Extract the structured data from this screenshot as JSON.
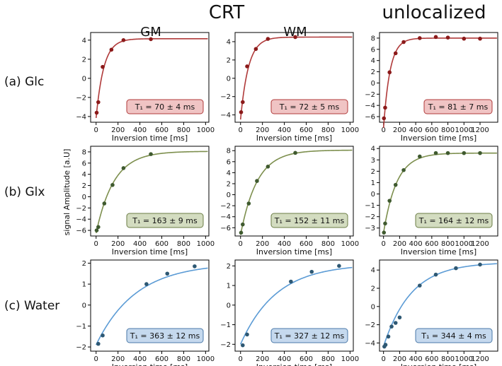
{
  "headers": {
    "crt": "CRT",
    "gm": "GM",
    "wm": "WM",
    "unlocalized": "unlocalized"
  },
  "row_labels": [
    "(a) Glc",
    "(b) Glx",
    "(c) Water"
  ],
  "ylabel": "signal Amplitude [a.U]",
  "xlabel": "Inversion time [ms]",
  "colors": {
    "glc_line": "#b03a3a",
    "glc_point": "#8b1a1a",
    "glc_box": "#f0c4c4",
    "glc_box_edge": "#b03a3a",
    "glx_line": "#7d8f4e",
    "glx_point": "#3f5a2f",
    "glx_box": "#d3dcc0",
    "glx_box_edge": "#6b7d45",
    "water_line": "#5b9bd5",
    "water_point": "#2e5873",
    "water_box": "#c5d9ee",
    "water_box_edge": "#4a78a8"
  },
  "chart_data": [
    {
      "type": "scatter",
      "row": "(a) Glc",
      "column": "GM",
      "xlim": [
        -50,
        1030
      ],
      "ylim": [
        -4.6,
        4.8
      ],
      "xticks": [
        0,
        200,
        400,
        600,
        800,
        1000
      ],
      "yticks": [
        -4,
        -2,
        0,
        2,
        4
      ],
      "x": [
        5,
        20,
        60,
        140,
        250,
        500
      ],
      "y": [
        -3.6,
        -2.5,
        1.2,
        3.0,
        4.0,
        4.1
      ],
      "fit": {
        "M0": 4.15,
        "k": 2.0,
        "T1": 70
      },
      "annotation": "T₁ = 70 ± 4 ms",
      "color_key": "glc"
    },
    {
      "type": "scatter",
      "row": "(a) Glc",
      "column": "WM",
      "xlim": [
        -50,
        1030
      ],
      "ylim": [
        -4.8,
        5.0
      ],
      "xticks": [
        0,
        200,
        400,
        600,
        800,
        1000
      ],
      "yticks": [
        -4,
        -2,
        0,
        2,
        4
      ],
      "x": [
        5,
        20,
        60,
        140,
        250,
        500
      ],
      "y": [
        -3.7,
        -2.6,
        1.3,
        3.2,
        4.3,
        4.5
      ],
      "fit": {
        "M0": 4.5,
        "k": 2.0,
        "T1": 72
      },
      "annotation": "T₁ = 72 ± 5 ms",
      "color_key": "glc"
    },
    {
      "type": "scatter",
      "row": "(a) Glc",
      "column": "unlocalized",
      "xlim": [
        -50,
        1420
      ],
      "ylim": [
        -7.0,
        9.0
      ],
      "xticks": [
        0,
        200,
        400,
        600,
        800,
        1000,
        1200
      ],
      "yticks": [
        -6,
        -4,
        -2,
        0,
        2,
        4,
        6,
        8
      ],
      "x": [
        5,
        20,
        75,
        150,
        250,
        450,
        650,
        800,
        1000,
        1200
      ],
      "y": [
        -6.3,
        -4.4,
        1.9,
        5.3,
        7.3,
        8.0,
        8.2,
        8.1,
        7.9,
        7.9
      ],
      "fit": {
        "M0": 8.0,
        "k": 2.0,
        "T1": 81
      },
      "annotation": "T₁ = 81 ± 7 ms",
      "color_key": "glc"
    },
    {
      "type": "scatter",
      "row": "(b) Glx",
      "column": "GM",
      "xlim": [
        -50,
        1030
      ],
      "ylim": [
        -7.0,
        9.0
      ],
      "xticks": [
        0,
        200,
        400,
        600,
        800,
        1000
      ],
      "yticks": [
        -6,
        -4,
        -2,
        0,
        2,
        4,
        6,
        8
      ],
      "x": [
        5,
        20,
        75,
        150,
        250,
        500
      ],
      "y": [
        -6.0,
        -5.4,
        -1.2,
        2.1,
        5.1,
        7.6
      ],
      "fit": {
        "M0": 8.1,
        "k": 1.8,
        "T1": 163
      },
      "annotation": "T₁ = 163 ± 9 ms",
      "color_key": "glx"
    },
    {
      "type": "scatter",
      "row": "(b) Glx",
      "column": "WM",
      "xlim": [
        -50,
        1030
      ],
      "ylim": [
        -7.5,
        8.8
      ],
      "xticks": [
        0,
        200,
        400,
        600,
        800,
        1000
      ],
      "yticks": [
        -6,
        -4,
        -2,
        0,
        2,
        4,
        6,
        8
      ],
      "x": [
        5,
        20,
        75,
        150,
        250,
        500
      ],
      "y": [
        -6.9,
        -5.4,
        -1.6,
        2.5,
        5.1,
        7.6
      ],
      "fit": {
        "M0": 8.1,
        "k": 1.9,
        "T1": 152
      },
      "annotation": "T₁ = 152 ± 11 ms",
      "color_key": "glx"
    },
    {
      "type": "scatter",
      "row": "(b) Glx",
      "column": "unlocalized",
      "xlim": [
        -50,
        1420
      ],
      "ylim": [
        -3.7,
        4.2
      ],
      "xticks": [
        0,
        200,
        400,
        600,
        800,
        1000,
        1200
      ],
      "yticks": [
        -3,
        -2,
        -1,
        0,
        1,
        2,
        3,
        4
      ],
      "x": [
        5,
        20,
        75,
        150,
        250,
        450,
        650,
        800,
        1000,
        1200
      ],
      "y": [
        -3.4,
        -2.6,
        -0.6,
        0.8,
        2.1,
        3.3,
        3.6,
        3.6,
        3.6,
        3.6
      ],
      "fit": {
        "M0": 3.6,
        "k": 1.95,
        "T1": 164
      },
      "annotation": "T₁ = 164 ± 12 ms",
      "color_key": "glx"
    },
    {
      "type": "scatter",
      "row": "(c) Water",
      "column": "GM",
      "xlim": [
        -50,
        1030
      ],
      "ylim": [
        -2.2,
        2.15
      ],
      "xticks": [
        0,
        200,
        400,
        600,
        800,
        1000
      ],
      "yticks": [
        -2,
        -1,
        0,
        1,
        2
      ],
      "x": [
        20,
        60,
        460,
        650,
        900
      ],
      "y": [
        -1.85,
        -1.45,
        1.0,
        1.5,
        1.85
      ],
      "fit": {
        "M0": 2.0,
        "k": 1.95,
        "T1": 363
      },
      "annotation": "T₁ = 363 ± 12 ms",
      "color_key": "water"
    },
    {
      "type": "scatter",
      "row": "(c) Water",
      "column": "WM",
      "xlim": [
        -50,
        1030
      ],
      "ylim": [
        -2.35,
        2.3
      ],
      "xticks": [
        0,
        200,
        400,
        600,
        800,
        1000
      ],
      "yticks": [
        -2,
        -1,
        0,
        1,
        2
      ],
      "x": [
        20,
        60,
        460,
        650,
        900
      ],
      "y": [
        -2.05,
        -1.5,
        1.2,
        1.7,
        2.0
      ],
      "fit": {
        "M0": 2.1,
        "k": 1.95,
        "T1": 327
      },
      "annotation": "T₁ = 327 ± 12 ms",
      "color_key": "water"
    },
    {
      "type": "scatter",
      "row": "(c) Water",
      "column": "unlocalized",
      "xlim": [
        -50,
        1420
      ],
      "ylim": [
        -4.9,
        5.1
      ],
      "xticks": [
        0,
        200,
        400,
        600,
        800,
        1000,
        1200
      ],
      "yticks": [
        -4,
        -2,
        0,
        2,
        4
      ],
      "x": [
        10,
        25,
        60,
        100,
        150,
        200,
        450,
        650,
        900,
        1200
      ],
      "y": [
        -4.4,
        -4.2,
        -3.3,
        -2.2,
        -1.8,
        -1.2,
        2.3,
        3.5,
        4.2,
        4.6
      ],
      "fit": {
        "M0": 4.85,
        "k": 1.9,
        "T1": 344
      },
      "annotation": "T₁ = 344 ± 4 ms",
      "color_key": "water"
    }
  ]
}
